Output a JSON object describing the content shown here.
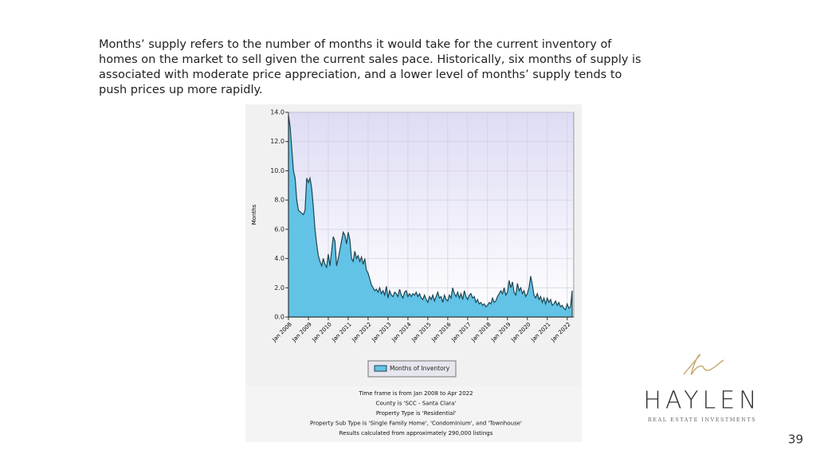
{
  "paragraph": [
    "Months’ supply refers to the number of months it would take for the current inventory of",
    "homes on the market to sell given the current sales pace. Historically, six months of supply is",
    "associated with moderate price appreciation, and a lower level of months’ supply tends to",
    "push prices up more rapidly."
  ],
  "chart_data": {
    "type": "area",
    "y_label": "Months",
    "legend": "bottom",
    "categories": [
      "Jan 2008",
      null,
      null,
      null,
      null,
      null,
      null,
      null,
      null,
      null,
      null,
      null,
      "Jan 2009",
      null,
      null,
      null,
      null,
      null,
      null,
      null,
      null,
      null,
      null,
      null,
      "Jan 2010",
      null,
      null,
      null,
      null,
      null,
      null,
      null,
      null,
      null,
      null,
      null,
      "Jan 2011",
      null,
      null,
      null,
      null,
      null,
      null,
      null,
      null,
      null,
      null,
      null,
      "Jan 2012",
      null,
      null,
      null,
      null,
      null,
      null,
      null,
      null,
      null,
      null,
      null,
      "Jan 2013",
      null,
      null,
      null,
      null,
      null,
      null,
      null,
      null,
      null,
      null,
      null,
      "Jan 2014",
      null,
      null,
      null,
      null,
      null,
      null,
      null,
      null,
      null,
      null,
      null,
      "Jan 2015",
      null,
      null,
      null,
      null,
      null,
      null,
      null,
      null,
      null,
      null,
      null,
      "Jan 2016",
      null,
      null,
      null,
      null,
      null,
      null,
      null,
      null,
      null,
      null,
      null,
      "Jan 2017",
      null,
      null,
      null,
      null,
      null,
      null,
      null,
      null,
      null,
      null,
      null,
      "Jan 2018",
      null,
      null,
      null,
      null,
      null,
      null,
      null,
      null,
      null,
      null,
      null,
      "Jan 2019",
      null,
      null,
      null,
      null,
      null,
      null,
      null,
      null,
      null,
      null,
      null,
      "Jan 2020",
      null,
      null,
      null,
      null,
      null,
      null,
      null,
      null,
      null,
      null,
      null,
      "Jan 2021",
      null,
      null,
      null,
      null,
      null,
      null,
      null,
      null,
      null,
      null,
      null,
      "Jan 2022",
      null,
      null,
      null
    ],
    "series": [
      {
        "name": "Months of Inventory",
        "color": "#62c3e6",
        "values": [
          13.8,
          13.0,
          11.5,
          10.0,
          9.5,
          8.0,
          7.3,
          7.2,
          7.1,
          7.0,
          7.3,
          9.5,
          9.2,
          9.5,
          8.8,
          7.5,
          6.0,
          5.0,
          4.2,
          3.8,
          3.5,
          4.0,
          3.6,
          3.4,
          4.3,
          3.5,
          4.5,
          5.5,
          5.2,
          3.5,
          4.0,
          4.6,
          5.2,
          5.8,
          5.6,
          5.0,
          5.8,
          5.3,
          4.0,
          3.8,
          4.5,
          4.0,
          4.2,
          3.8,
          4.1,
          3.6,
          4.0,
          3.2,
          3.0,
          2.6,
          2.2,
          2.0,
          1.8,
          1.9,
          1.7,
          2.0,
          1.6,
          1.8,
          1.5,
          2.1,
          1.3,
          1.8,
          1.5,
          1.4,
          1.7,
          1.6,
          1.4,
          1.9,
          1.5,
          1.3,
          1.7,
          1.8,
          1.4,
          1.6,
          1.4,
          1.6,
          1.5,
          1.7,
          1.4,
          1.6,
          1.3,
          1.2,
          1.5,
          1.2,
          1.0,
          1.4,
          1.2,
          1.5,
          1.1,
          1.4,
          1.7,
          1.3,
          1.4,
          1.0,
          1.5,
          1.2,
          1.1,
          1.5,
          1.3,
          2.0,
          1.6,
          1.4,
          1.7,
          1.3,
          1.6,
          1.2,
          1.8,
          1.4,
          1.2,
          1.5,
          1.6,
          1.3,
          1.4,
          1.0,
          1.2,
          0.9,
          1.0,
          0.8,
          0.9,
          0.7,
          0.8,
          1.0,
          0.9,
          1.3,
          1.0,
          1.1,
          1.4,
          1.6,
          1.8,
          1.6,
          2.0,
          1.5,
          1.7,
          2.5,
          2.0,
          2.4,
          1.7,
          1.5,
          2.3,
          1.8,
          2.0,
          1.6,
          1.8,
          1.4,
          1.6,
          2.0,
          2.8,
          2.2,
          1.5,
          1.3,
          1.6,
          1.2,
          1.4,
          1.0,
          1.3,
          0.9,
          1.3,
          1.0,
          1.2,
          0.8,
          0.9,
          1.1,
          0.8,
          1.0,
          0.7,
          0.8,
          0.6,
          0.5,
          0.9,
          0.6,
          0.7,
          1.8
        ]
      }
    ],
    "ylim": [
      0,
      14
    ],
    "yticks": [
      {
        "value": 0,
        "label": "0.0"
      },
      {
        "value": 2,
        "label": "2.0"
      },
      {
        "value": 4,
        "label": "4.0"
      },
      {
        "value": 6,
        "label": "6.0"
      },
      {
        "value": 8,
        "label": "8.0"
      },
      {
        "value": 10,
        "label": "10.0"
      },
      {
        "value": 12,
        "label": "12.0"
      },
      {
        "value": 14,
        "label": "14.0"
      }
    ],
    "grid": true,
    "notes": [
      "Time frame is from Jan 2008 to Apr 2022",
      "County is 'SCC - Santa Clara'",
      "Property Type is 'Residential'",
      "Property Sub Type is 'Single Family Home', 'Condominium', and 'Townhouse'",
      "Results calculated from approximately 290,000 listings"
    ]
  },
  "logo": {
    "name": "HAYLEN",
    "tagline": "REAL ESTATE INVESTMENTS"
  },
  "page_number": "39"
}
